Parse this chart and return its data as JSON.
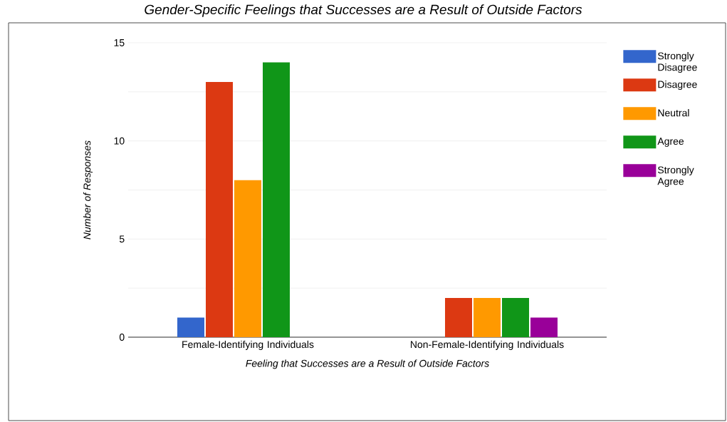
{
  "chart_data": {
    "type": "bar",
    "title": "Gender-Specific Feelings that Successes are a Result of Outside Factors",
    "xlabel": "Feeling that Successes are a Result of Outside Factors",
    "ylabel": "Number of Responses",
    "categories": [
      "Female-Identifying Individuals",
      "Non-Female-Identifying Individuals"
    ],
    "series": [
      {
        "name": "Strongly Disagree",
        "color": "#3366cc",
        "values": [
          1,
          0
        ]
      },
      {
        "name": "Disagree",
        "color": "#dc3912",
        "values": [
          13,
          2
        ]
      },
      {
        "name": "Neutral",
        "color": "#ff9900",
        "values": [
          8,
          2
        ]
      },
      {
        "name": "Agree",
        "color": "#109618",
        "values": [
          14,
          2
        ]
      },
      {
        "name": "Strongly Agree",
        "color": "#990099",
        "values": [
          0,
          1
        ]
      }
    ],
    "ylim": [
      0,
      15
    ],
    "yticks": [
      0,
      {
        "value": 2.5,
        "label": null
      },
      5,
      {
        "value": 7.5,
        "label": null
      },
      10,
      {
        "value": 12.5,
        "label": null
      },
      15
    ],
    "grid": "y",
    "legend": "top right"
  }
}
